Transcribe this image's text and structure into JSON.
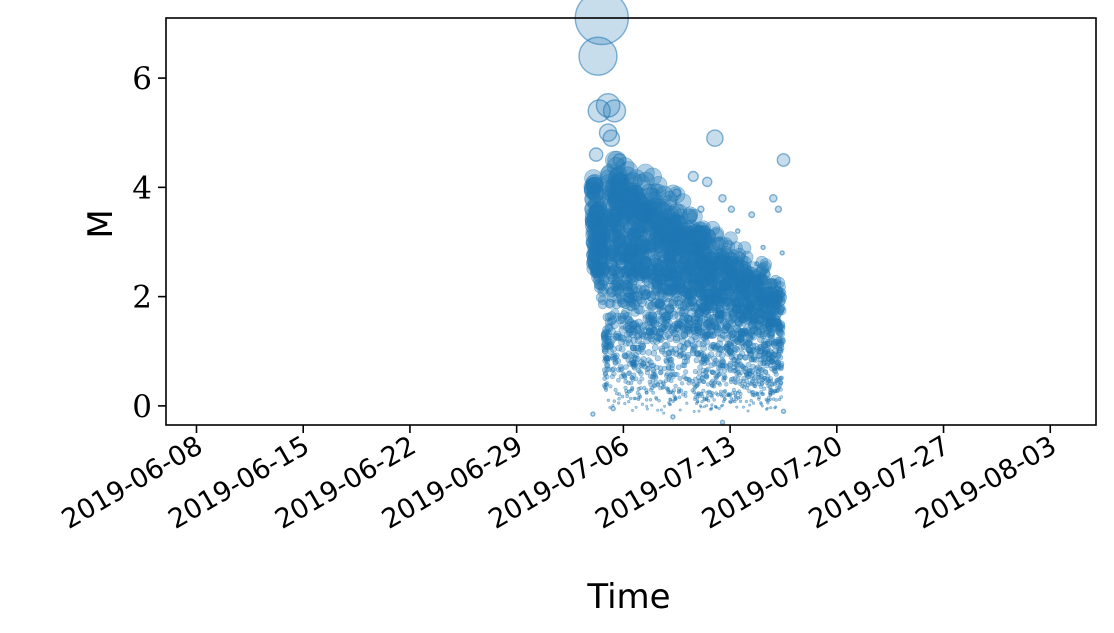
{
  "chart_data": {
    "type": "scatter",
    "title": "",
    "xlabel": "Time",
    "ylabel": "M",
    "xlim": [
      "2019-06-06",
      "2019-08-06"
    ],
    "ylim": [
      -0.35,
      7.1
    ],
    "x_ticks": [
      "2019-06-08",
      "2019-06-15",
      "2019-06-22",
      "2019-06-29",
      "2019-07-06",
      "2019-07-13",
      "2019-07-20",
      "2019-07-27",
      "2019-08-03"
    ],
    "y_ticks": [
      0,
      2,
      4,
      6
    ],
    "grid": false,
    "legend": "none",
    "marker_color": "#1f77b4",
    "marker_alpha": 0.25,
    "marker_size_encodes": "M",
    "series": [
      {
        "points": [
          [
            "2019-07-04T14:00",
            7.1
          ],
          [
            "2019-07-04T08:00",
            6.4
          ],
          [
            "2019-07-04T10:00",
            5.4
          ],
          [
            "2019-07-05T00:00",
            5.5
          ],
          [
            "2019-07-05T10:00",
            5.4
          ],
          [
            "2019-07-05T00:00",
            5.0
          ],
          [
            "2019-07-04T05:00",
            4.6
          ],
          [
            "2019-07-05T05:00",
            4.9
          ],
          [
            "2019-07-05T18:00",
            4.5
          ],
          [
            "2019-07-12T00:00",
            4.9
          ],
          [
            "2019-07-16T12:00",
            4.5
          ],
          [
            "2019-07-10T14:00",
            4.2
          ],
          [
            "2019-07-11T12:00",
            4.1
          ],
          [
            "2019-07-07T06:00",
            3.9
          ],
          [
            "2019-07-09T12:00",
            3.9
          ],
          [
            "2019-07-12T12:00",
            3.8
          ],
          [
            "2019-07-15T20:00",
            3.8
          ],
          [
            "2019-07-14T10:00",
            3.5
          ],
          [
            "2019-07-13T02:00",
            3.6
          ],
          [
            "2019-07-16T04:00",
            3.6
          ],
          [
            "2019-07-08T18:00",
            3.5
          ],
          [
            "2019-07-11T02:00",
            3.6
          ],
          [
            "2019-07-13T12:00",
            3.2
          ],
          [
            "2019-07-15T04:00",
            2.9
          ],
          [
            "2019-07-16T10:00",
            2.8
          ],
          [
            "2019-07-14T18:00",
            2.6
          ],
          [
            "2019-07-10T00:00",
            3.1
          ],
          [
            "2019-07-04T00:00",
            -0.15
          ],
          [
            "2019-07-05T08:00",
            -0.05
          ],
          [
            "2019-07-12T12:00",
            -0.3
          ],
          [
            "2019-07-16T12:00",
            -0.1
          ],
          [
            "2019-07-09T06:00",
            -0.2
          ]
        ]
      }
    ]
  }
}
